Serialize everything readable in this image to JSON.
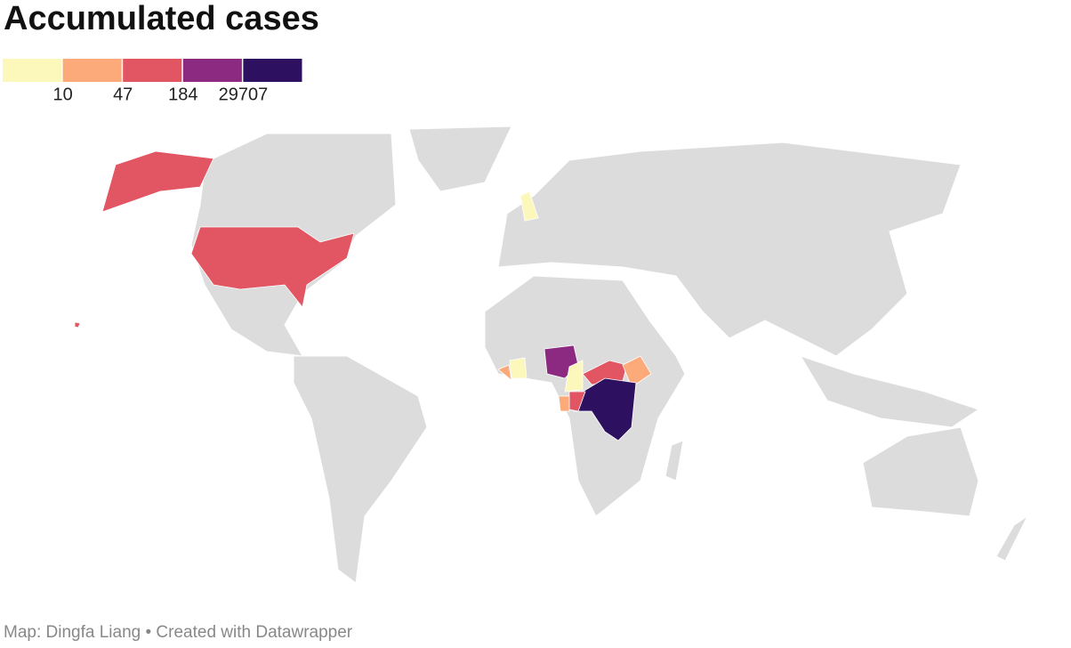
{
  "title": "Accumulated cases",
  "legend": {
    "colors": [
      "#fcf8bb",
      "#fdaa7a",
      "#e25563",
      "#8c2981",
      "#2d1160"
    ],
    "breaks": [
      10,
      47,
      184,
      29707
    ]
  },
  "footer": "Map: Dingfa Liang • Created with Datawrapper"
}
